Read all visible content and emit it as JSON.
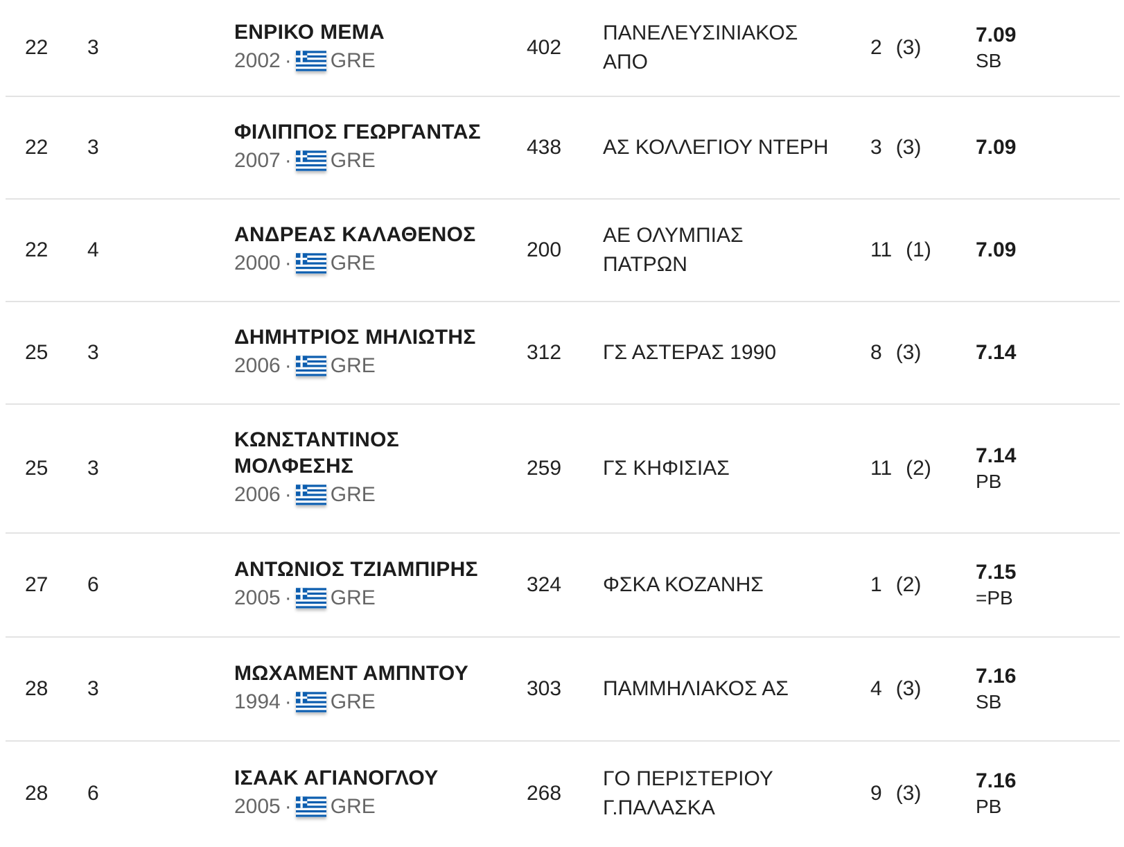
{
  "colors": {
    "flag_blue": "#0D5EAF",
    "flag_white": "#FFFFFF",
    "divider": "#e3e3e3",
    "meta_text": "#666666"
  },
  "flag_icon": "greece-flag-icon",
  "rows": [
    {
      "rank": "22",
      "heat": "3",
      "name": "ΕΝΡΙΚΟ ΜΕΜΑ",
      "year": "2002",
      "country": "GRE",
      "bib": "402",
      "club": "ΠΑΝΕΛΕΥΣΙΝΙΑΚΟΣ ΑΠΟ",
      "place": "2",
      "place_count": "(3)",
      "mark": "7.09",
      "note": "SB"
    },
    {
      "rank": "22",
      "heat": "3",
      "name": "ΦΙΛΙΠΠΟΣ ΓΕΩΡΓΑΝΤΑΣ",
      "year": "2007",
      "country": "GRE",
      "bib": "438",
      "club": "ΑΣ ΚΟΛΛΕΓΙΟΥ ΝΤΕΡΗ",
      "place": "3",
      "place_count": "(3)",
      "mark": "7.09",
      "note": ""
    },
    {
      "rank": "22",
      "heat": "4",
      "name": "ΑΝΔΡΕΑΣ ΚΑΛΑΘΕΝΟΣ",
      "year": "2000",
      "country": "GRE",
      "bib": "200",
      "club": "ΑΕ ΟΛΥΜΠΙΑΣ ΠΑΤΡΩΝ",
      "place": "11",
      "place_count": "(1)",
      "mark": "7.09",
      "note": ""
    },
    {
      "rank": "25",
      "heat": "3",
      "name": "ΔΗΜΗΤΡΙΟΣ ΜΗΛΙΩΤΗΣ",
      "year": "2006",
      "country": "GRE",
      "bib": "312",
      "club": "ΓΣ ΑΣΤΕΡΑΣ 1990",
      "place": "8",
      "place_count": "(3)",
      "mark": "7.14",
      "note": ""
    },
    {
      "rank": "25",
      "heat": "3",
      "name": "ΚΩΝΣΤΑΝΤΙΝΟΣ ΜΟΛΦΕΣΗΣ",
      "year": "2006",
      "country": "GRE",
      "bib": "259",
      "club": "ΓΣ ΚΗΦΙΣΙΑΣ",
      "place": "11",
      "place_count": "(2)",
      "mark": "7.14",
      "note": "PB"
    },
    {
      "rank": "27",
      "heat": "6",
      "name": "ΑΝΤΩΝΙΟΣ ΤΖΙΑΜΠΙΡΗΣ",
      "year": "2005",
      "country": "GRE",
      "bib": "324",
      "club": "ΦΣΚΑ ΚΟΖΑΝΗΣ",
      "place": "1",
      "place_count": "(2)",
      "mark": "7.15",
      "note": "=PB"
    },
    {
      "rank": "28",
      "heat": "3",
      "name": "ΜΩΧΑΜΕΝΤ ΑΜΠΝΤΟΥ",
      "year": "1994",
      "country": "GRE",
      "bib": "303",
      "club": "ΠΑΜΜΗΛΙΑΚΟΣ ΑΣ",
      "place": "4",
      "place_count": "(3)",
      "mark": "7.16",
      "note": "SB"
    },
    {
      "rank": "28",
      "heat": "6",
      "name": "ΙΣΑΑΚ ΑΓΙΑΝΟΓΛΟΥ",
      "year": "2005",
      "country": "GRE",
      "bib": "268",
      "club": "ΓΟ ΠΕΡΙΣΤΕΡΙΟΥ Γ.ΠΑΛΑΣΚΑ",
      "place": "9",
      "place_count": "(3)",
      "mark": "7.16",
      "note": "PB"
    }
  ]
}
